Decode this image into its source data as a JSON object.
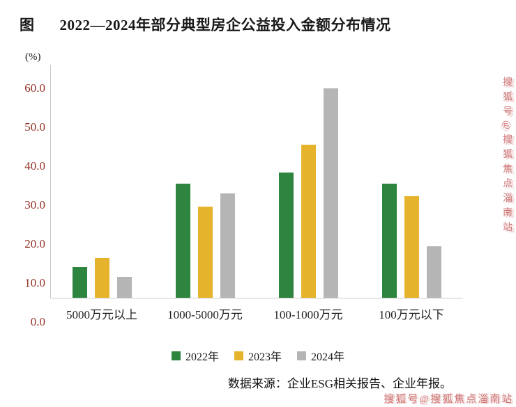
{
  "figure": {
    "label": "图",
    "title": "2022—2024年部分典型房企公益投入金额分布情况",
    "source": "数据来源：企业ESG相关报告、企业年报。",
    "watermark": "搜狐号@搜狐焦点淄南站"
  },
  "chart_data": {
    "type": "bar",
    "title": "2022—2024年部分典型房企公益投入金额分布情况",
    "unit_label": "(%)",
    "categories": [
      "5000万元以上",
      "1000-5000万元",
      "100-1000万元",
      "100万元以下"
    ],
    "series": [
      {
        "name": "2022年",
        "color": "#2e8540",
        "values": [
          7.8,
          29.4,
          32.3,
          29.4
        ]
      },
      {
        "name": "2023年",
        "color": "#e6b42c",
        "values": [
          10.3,
          23.5,
          39.4,
          26.2
        ]
      },
      {
        "name": "2024年",
        "color": "#b5b5b5",
        "values": [
          5.4,
          26.8,
          53.9,
          13.3
        ]
      }
    ],
    "ylim": [
      0,
      60
    ],
    "yticks": [
      "60.0",
      "50.0",
      "40.0",
      "30.0",
      "20.0",
      "10.0",
      "0.0"
    ],
    "grid": false,
    "legend_position": "bottom",
    "colors": {
      "tick_label": "#943126",
      "axis_line": "#c9c9c9",
      "watermark": "#cb6a6a"
    }
  }
}
